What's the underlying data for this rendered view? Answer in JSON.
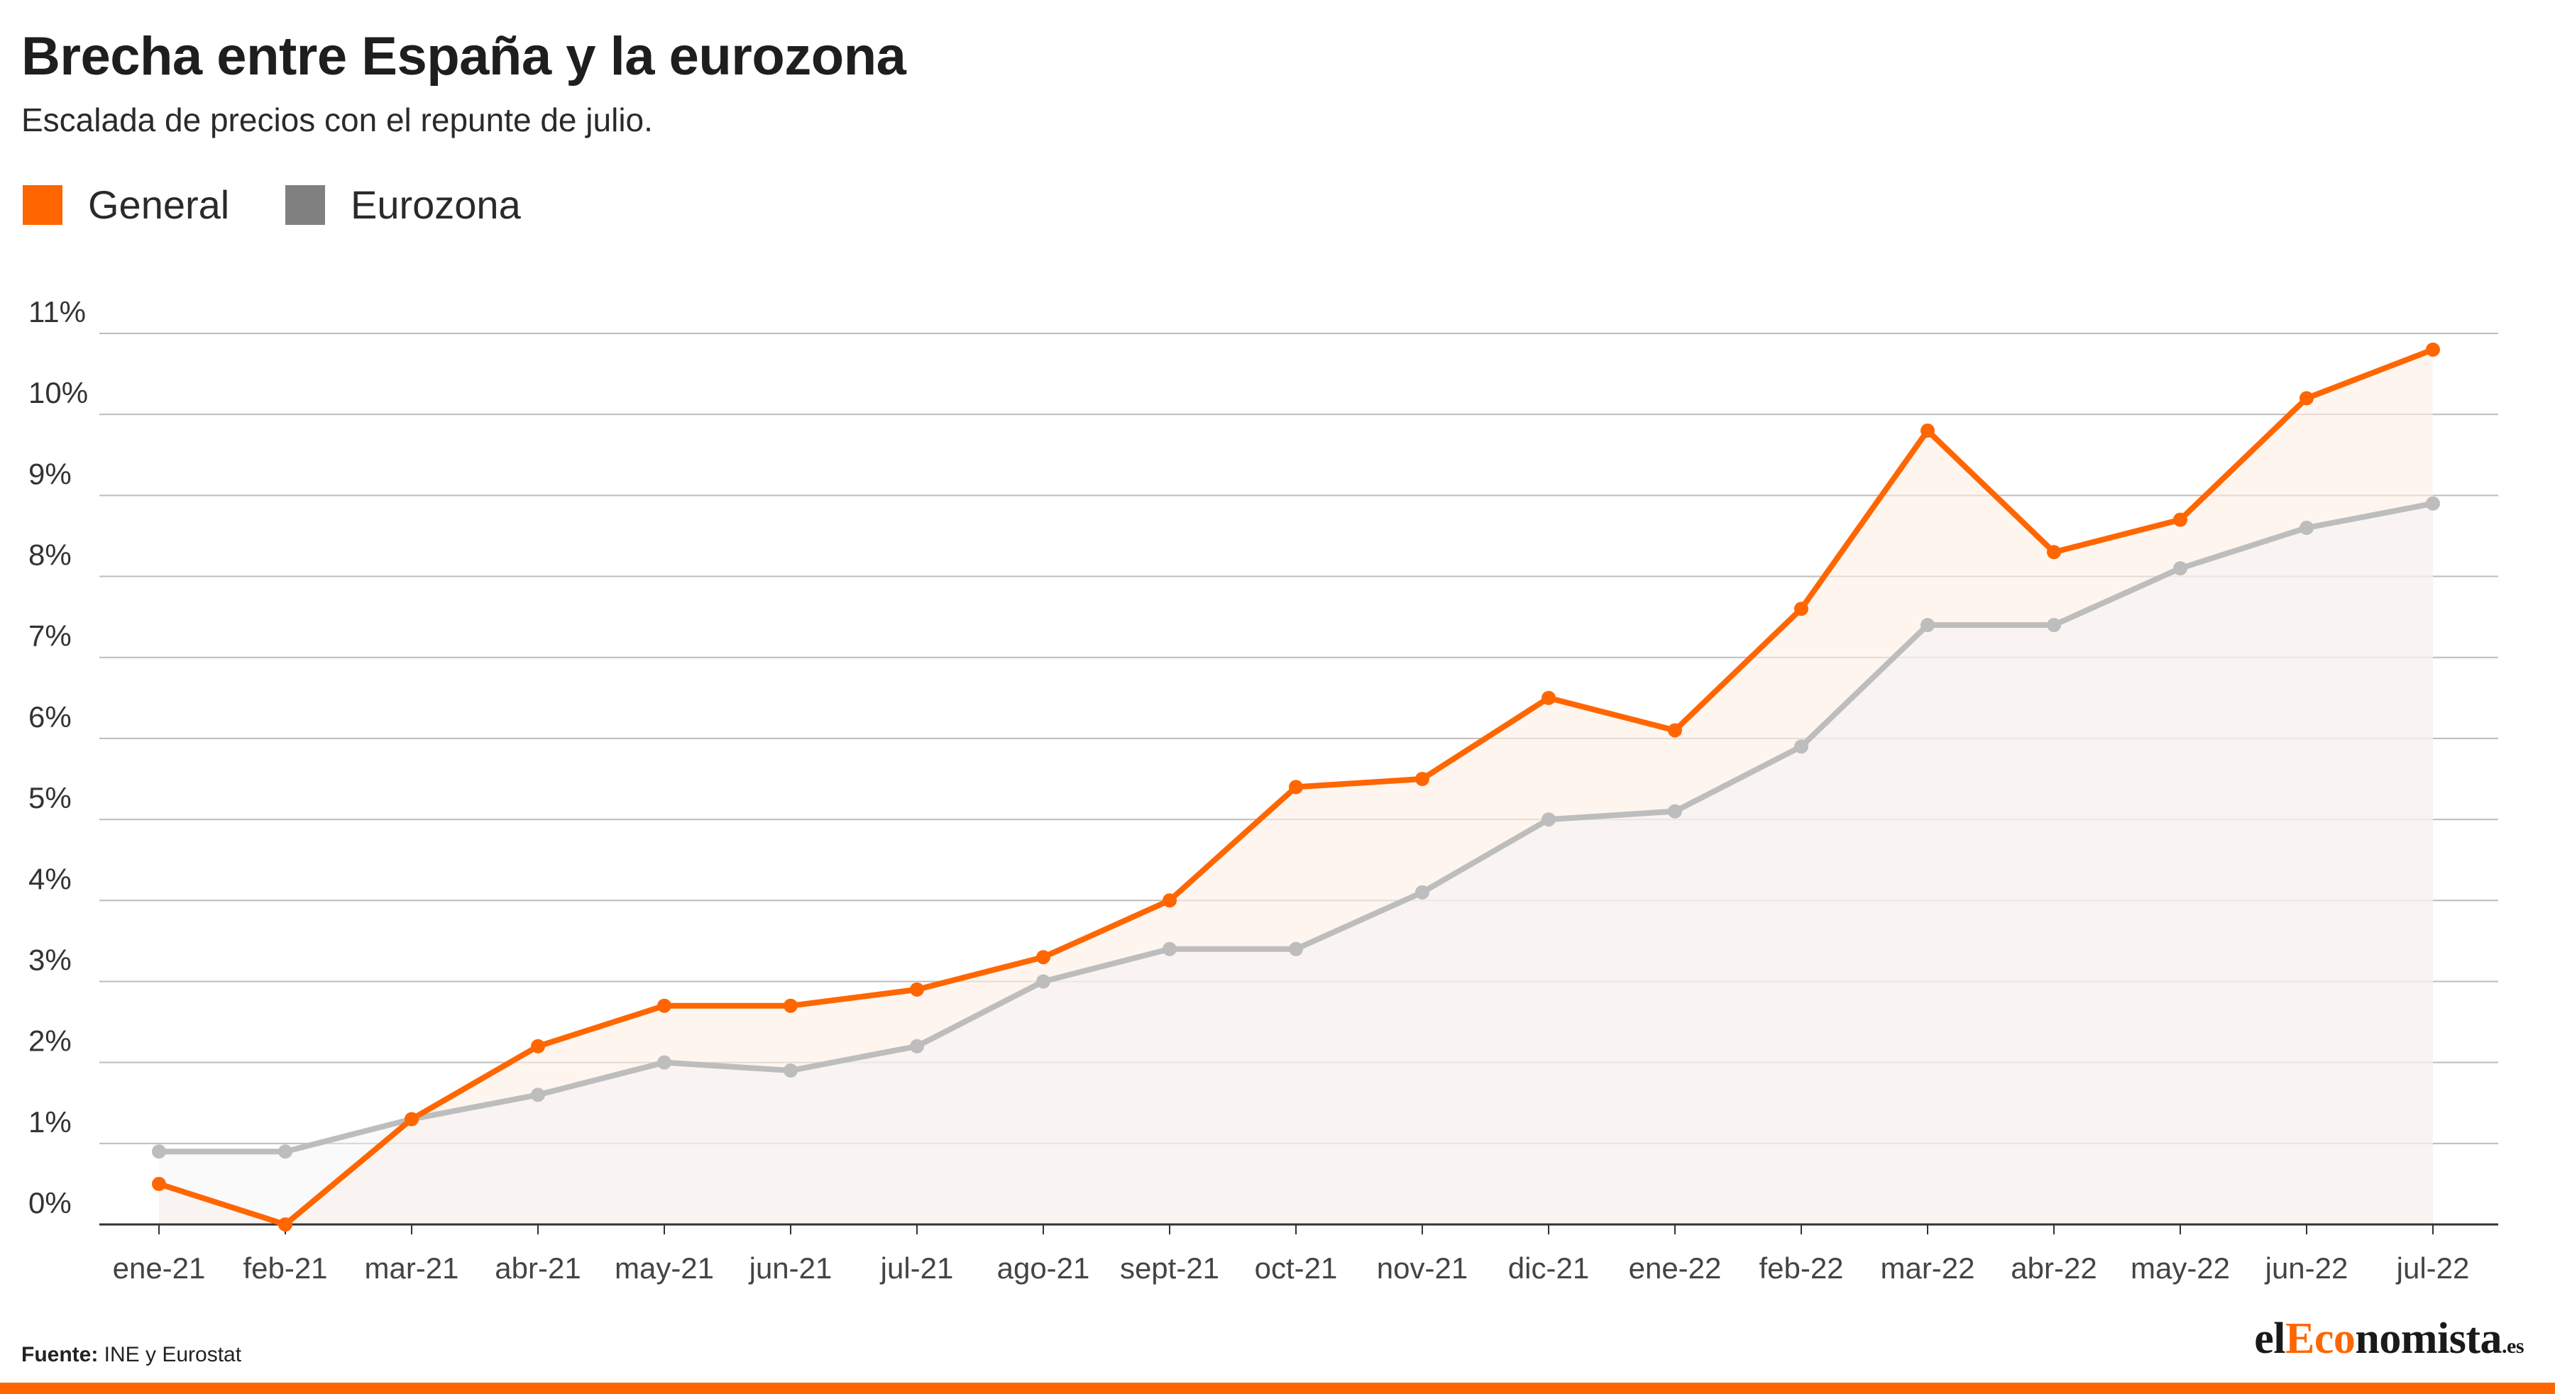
{
  "title": "Brecha entre España y la eurozona",
  "subtitle": "Escalada de precios con el repunte de julio.",
  "source_label": "Fuente:",
  "source_text": "INE y Eurostat",
  "logo": {
    "el": "el",
    "accent": "Eco",
    "rest": "nomista",
    "tld": ".es"
  },
  "colors": {
    "general": "#ff6600",
    "eurozona": "#808080",
    "eurozona_line": "#bdbdbd"
  },
  "chart_data": {
    "type": "line",
    "categories": [
      "ene-21",
      "feb-21",
      "mar-21",
      "abr-21",
      "may-21",
      "jun-21",
      "jul-21",
      "ago-21",
      "sept-21",
      "oct-21",
      "nov-21",
      "dic-21",
      "ene-22",
      "feb-22",
      "mar-22",
      "abr-22",
      "may-22",
      "jun-22",
      "jul-22"
    ],
    "series": [
      {
        "name": "General",
        "values": [
          0.5,
          0.0,
          1.3,
          2.2,
          2.7,
          2.7,
          2.9,
          3.3,
          4.0,
          5.4,
          5.5,
          6.5,
          6.1,
          7.6,
          9.8,
          8.3,
          8.7,
          10.2,
          10.8
        ]
      },
      {
        "name": "Eurozona",
        "values": [
          0.9,
          0.9,
          1.3,
          1.6,
          2.0,
          1.9,
          2.2,
          3.0,
          3.4,
          3.4,
          4.1,
          5.0,
          5.1,
          5.9,
          7.4,
          7.4,
          8.1,
          8.6,
          8.9
        ]
      }
    ],
    "yticks": [
      "0%",
      "1%",
      "2%",
      "3%",
      "4%",
      "5%",
      "6%",
      "7%",
      "8%",
      "9%",
      "10%",
      "11%"
    ],
    "ylim": [
      0,
      11
    ],
    "grid": true,
    "legend": "top-left"
  }
}
